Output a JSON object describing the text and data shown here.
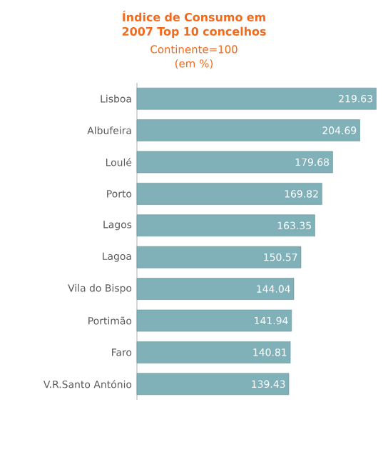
{
  "chart_data": {
    "type": "bar",
    "orientation": "horizontal",
    "title": "Índice de Consumo em 2007 Top 10 concelhos",
    "subtitle": "Continente=100 (em %)",
    "categories": [
      "Lisboa",
      "Albufeira",
      "Loulé",
      "Porto",
      "Lagos",
      "Lagoa",
      "Vila do Bispo",
      "Portimão",
      "Faro",
      "V.R.Santo António"
    ],
    "values": [
      219.63,
      204.69,
      179.68,
      169.82,
      163.35,
      150.57,
      144.04,
      141.94,
      140.81,
      139.43
    ],
    "color": "#80b1b9",
    "xlim": [
      0,
      220
    ],
    "data_labels": true
  }
}
